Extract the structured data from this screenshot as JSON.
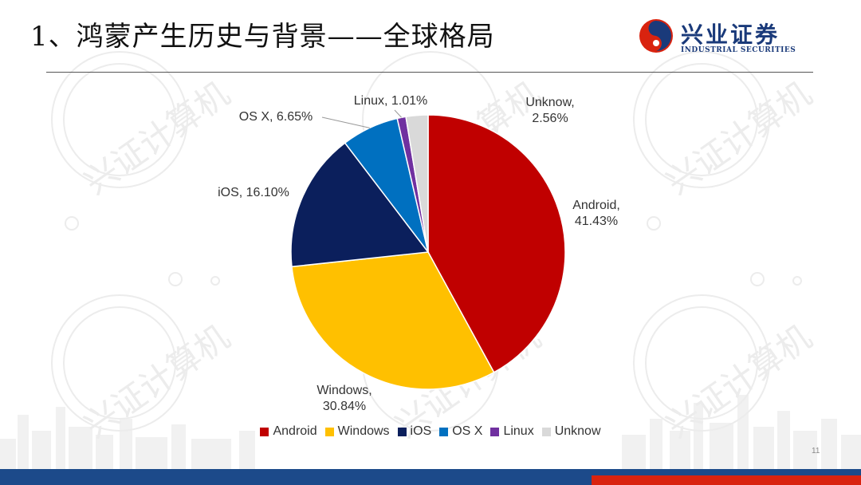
{
  "header": {
    "title": "1、鸿蒙产生历史与背景——全球格局",
    "logo_text": "兴业证券",
    "logo_subtext": "INDUSTRIAL SECURITIES"
  },
  "watermark_text": "兴证计算机",
  "page_number": "11",
  "colors": {
    "Android": "#c00000",
    "Windows": "#ffc000",
    "iOS": "#0b1f5c",
    "OS X": "#0070c0",
    "Linux": "#7030a0",
    "Unknow": "#d9d9d9",
    "footer_blue": "#1c4a8a",
    "footer_red": "#d9230f"
  },
  "chart_data": {
    "type": "pie",
    "categories": [
      "Android",
      "Windows",
      "iOS",
      "OS X",
      "Linux",
      "Unknow"
    ],
    "values": [
      41.43,
      30.84,
      16.1,
      6.65,
      1.01,
      2.56
    ],
    "data_labels": [
      "Android,\n41.43%",
      "Windows,\n30.84%",
      "iOS, 16.10%",
      "OS X, 6.65%",
      "Linux, 1.01%",
      "Unknow,\n2.56%"
    ],
    "legend": "bottom",
    "start_angle": "12 o'clock, clockwise"
  }
}
